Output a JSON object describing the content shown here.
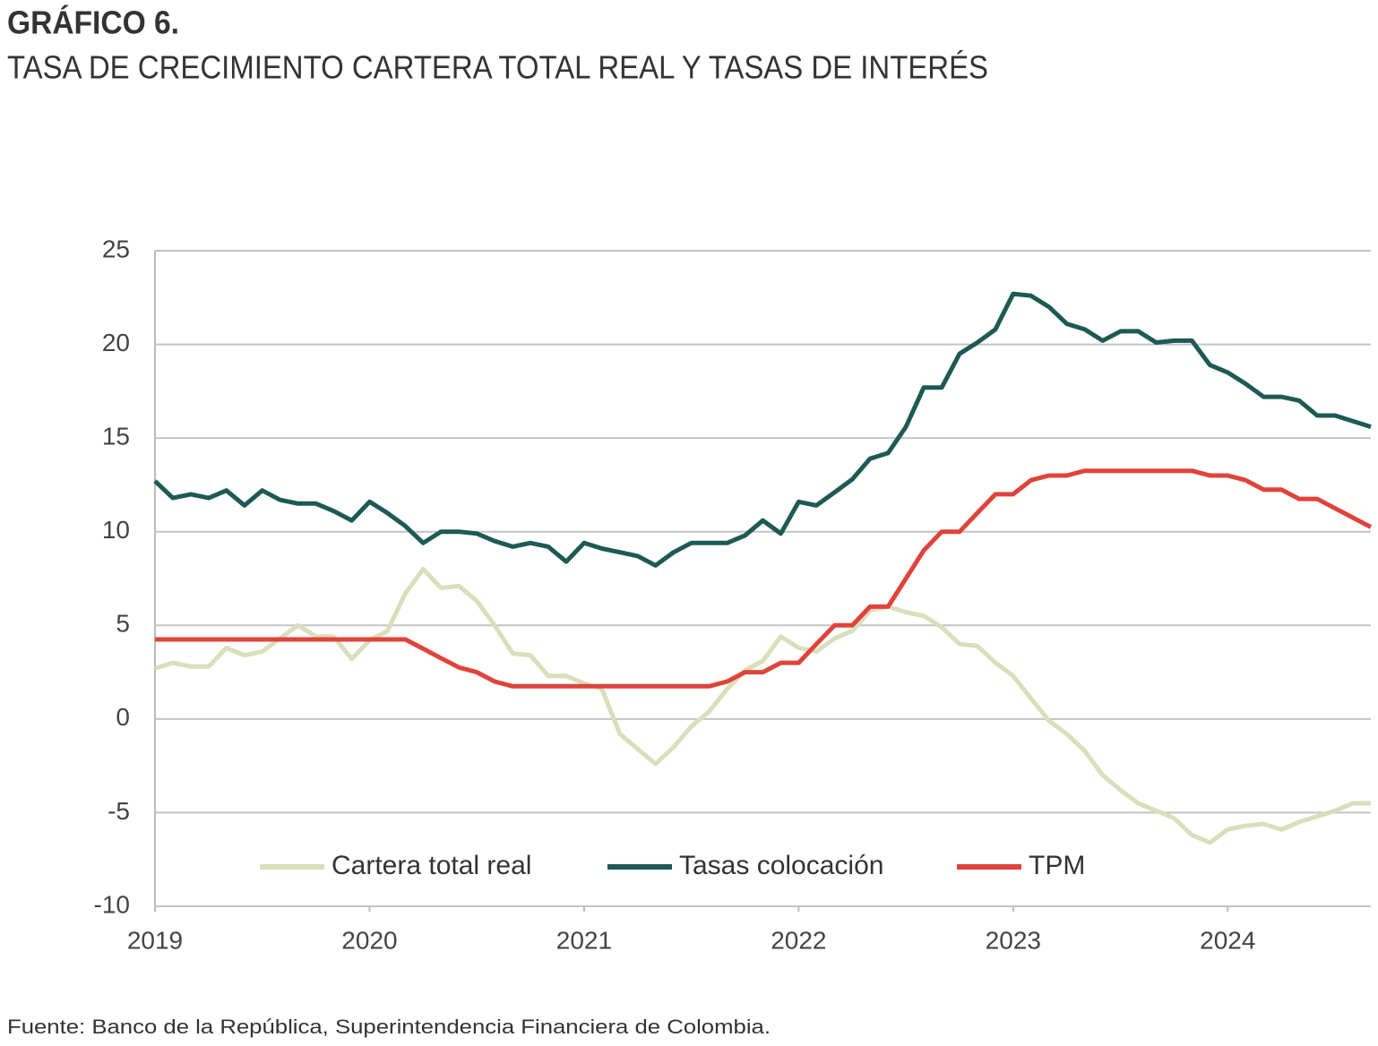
{
  "chart_data": {
    "type": "line",
    "title": "GRÁFICO 6.",
    "subtitle": "TASA DE CRECIMIENTO CARTERA TOTAL REAL Y TASAS DE INTERÉS",
    "source": "Fuente: Banco de la República, Superintendencia Financiera de Colombia.",
    "x": [
      2019,
      2019.083,
      2019.167,
      2019.25,
      2019.333,
      2019.417,
      2019.5,
      2019.583,
      2019.667,
      2019.75,
      2019.833,
      2019.917,
      2020,
      2020.083,
      2020.167,
      2020.25,
      2020.333,
      2020.417,
      2020.5,
      2020.583,
      2020.667,
      2020.75,
      2020.833,
      2020.917,
      2021,
      2021.083,
      2021.167,
      2021.25,
      2021.333,
      2021.417,
      2021.5,
      2021.583,
      2021.667,
      2021.75,
      2021.833,
      2021.917,
      2022,
      2022.083,
      2022.167,
      2022.25,
      2022.333,
      2022.417,
      2022.5,
      2022.583,
      2022.667,
      2022.75,
      2022.833,
      2022.917,
      2023,
      2023.083,
      2023.167,
      2023.25,
      2023.333,
      2023.417,
      2023.5,
      2023.583,
      2023.667,
      2023.75,
      2023.833,
      2023.917,
      2024,
      2024.083,
      2024.167,
      2024.25,
      2024.333,
      2024.417,
      2024.5,
      2024.583,
      2024.667
    ],
    "series": [
      {
        "name": "Cartera total real",
        "color": "#d8dfba",
        "values": [
          2.7,
          3.0,
          2.8,
          2.8,
          3.8,
          3.4,
          3.6,
          4.3,
          5.0,
          4.4,
          4.4,
          3.2,
          4.2,
          4.7,
          6.7,
          8.0,
          7.0,
          7.1,
          6.3,
          5.0,
          3.5,
          3.4,
          2.3,
          2.3,
          1.9,
          1.6,
          -0.8,
          -1.6,
          -2.4,
          -1.5,
          -0.4,
          0.4,
          1.6,
          2.6,
          3.1,
          4.4,
          3.8,
          3.6,
          4.3,
          4.7,
          5.8,
          6.0,
          5.7,
          5.5,
          4.9,
          4.0,
          3.9,
          3.0,
          2.3,
          1.1,
          -0.1,
          -0.8,
          -1.7,
          -3.0,
          -3.8,
          -4.5,
          -4.9,
          -5.3,
          -6.2,
          -6.6,
          -5.9,
          -5.7,
          -5.6,
          -5.9,
          -5.5,
          -5.2,
          -4.9,
          -4.5,
          -4.5
        ]
      },
      {
        "name": "Tasas colocación",
        "color": "#1e5a55",
        "values": [
          12.7,
          11.8,
          12.0,
          11.8,
          12.2,
          11.4,
          12.2,
          11.7,
          11.5,
          11.5,
          11.1,
          10.6,
          11.6,
          11.0,
          10.3,
          9.4,
          10.0,
          10.0,
          9.9,
          9.5,
          9.2,
          9.4,
          9.2,
          8.4,
          9.4,
          9.1,
          8.9,
          8.7,
          8.2,
          8.9,
          9.4,
          9.4,
          9.4,
          9.8,
          10.6,
          9.9,
          11.6,
          11.4,
          12.1,
          12.8,
          13.9,
          14.2,
          15.6,
          17.7,
          17.7,
          19.5,
          20.1,
          20.8,
          22.7,
          22.6,
          22.0,
          21.1,
          20.8,
          20.2,
          20.7,
          20.7,
          20.1,
          20.2,
          20.2,
          18.9,
          18.5,
          17.9,
          17.2,
          17.2,
          17.0,
          16.2,
          16.2,
          15.9,
          15.6
        ]
      },
      {
        "name": "TPM",
        "color": "#e0433a",
        "values": [
          4.25,
          4.25,
          4.25,
          4.25,
          4.25,
          4.25,
          4.25,
          4.25,
          4.25,
          4.25,
          4.25,
          4.25,
          4.25,
          4.25,
          4.25,
          3.75,
          3.25,
          2.75,
          2.5,
          2.0,
          1.75,
          1.75,
          1.75,
          1.75,
          1.75,
          1.75,
          1.75,
          1.75,
          1.75,
          1.75,
          1.75,
          1.75,
          2.0,
          2.5,
          2.5,
          3.0,
          3.0,
          4.0,
          5.0,
          5.0,
          6.0,
          6.0,
          7.5,
          9.0,
          10.0,
          10.0,
          11.0,
          12.0,
          12.0,
          12.75,
          13.0,
          13.0,
          13.25,
          13.25,
          13.25,
          13.25,
          13.25,
          13.25,
          13.25,
          13.0,
          13.0,
          12.75,
          12.25,
          12.25,
          11.75,
          11.75,
          11.25,
          10.75,
          10.25
        ]
      }
    ],
    "xlim": [
      2019,
      2024.667
    ],
    "xticks": [
      2019,
      2020,
      2021,
      2022,
      2023,
      2024
    ],
    "ylim": [
      -10,
      25
    ],
    "yticks": [
      -10,
      -5,
      0,
      5,
      10,
      15,
      20,
      25
    ],
    "grid": true,
    "legend": "bottom"
  }
}
